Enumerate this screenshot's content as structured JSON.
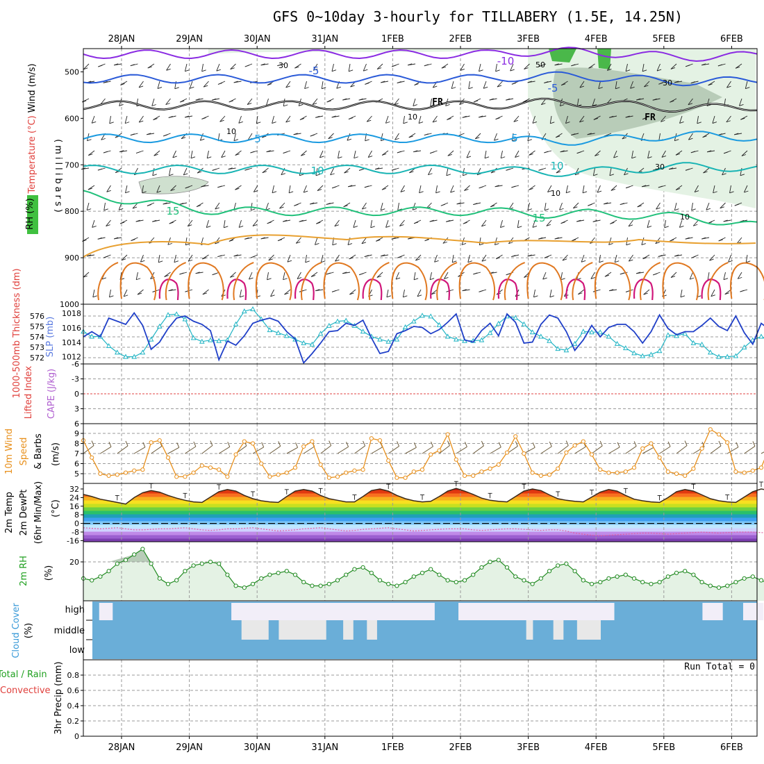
{
  "chart_data": {
    "type": "line",
    "title": "GFS 0~10day 3-hourly for TILLABERY (1.5E, 14.25N)",
    "dates": [
      "28JAN",
      "29JAN",
      "30JAN",
      "31JAN",
      "1FEB",
      "2FEB",
      "3FEB",
      "4FEB",
      "5FEB",
      "6FEB"
    ],
    "panels": [
      {
        "id": "upper_air",
        "ylabel_parts": [
          {
            "text": "Wind (m/s)",
            "color": "#000000"
          },
          {
            "text": "Temperature (°C)",
            "color": "#e0403c"
          },
          {
            "text": "RH (%)",
            "color": "#000000"
          }
        ],
        "ylabel2": "(millibars)",
        "yticks": [
          "500",
          "600",
          "700",
          "800",
          "900",
          "1000"
        ],
        "ylim": [
          1000,
          450
        ],
        "contour_labels": [
          "-10",
          "-5",
          "FR",
          "FR",
          "-5",
          "5",
          "5",
          "10",
          "10",
          "15",
          "15"
        ],
        "rh_labels": [
          "30",
          "50",
          "30",
          "10",
          "10",
          "30",
          "10",
          "10"
        ],
        "contours": [
          {
            "name": "-10",
            "color": "#8a2be2",
            "level": 462
          },
          {
            "name": "-5",
            "color": "#2a5ad8",
            "level": 515
          },
          {
            "name": "FR",
            "color": "#000000",
            "level": 572
          },
          {
            "name": "5",
            "color": "#1a9ae0",
            "level": 643
          },
          {
            "name": "10",
            "color": "#18b4b4",
            "level": 710
          },
          {
            "name": "15",
            "color": "#20c07a",
            "level": 800
          }
        ]
      },
      {
        "id": "thickness_slp",
        "ylabel_left": "1000-500mb Thickness (dm)",
        "ylabel_right": "SLP (mb)",
        "yticks_left": [
          "576",
          "575",
          "574",
          "573",
          "572"
        ],
        "yticks_right": [
          "1018",
          "1016",
          "1014",
          "1012"
        ],
        "series": [
          {
            "name": "thickness",
            "color": "#1f3fc8",
            "values": [
              574,
              574.5,
              574,
              575.8,
              575.5,
              575.2,
              576.3,
              575.1,
              572.8,
              573.5,
              574.8,
              575.8,
              576,
              575.5,
              575.2,
              574.6,
              571.8,
              573.6,
              573.2,
              574.1,
              575.3,
              575.6,
              575.8,
              575.5,
              574.5,
              573.8,
              571.5,
              572.4,
              573.4,
              574.5,
              574.6,
              575.3,
              575.1,
              575.6,
              573.9,
              572.4,
              572.6,
              574.3,
              574.6,
              575,
              574.9,
              574.3,
              574.7,
              575.4,
              576.2,
              573.7,
              573.5,
              574.6,
              575.3,
              574.1,
              576.2,
              575.4,
              573.4,
              573.5,
              575.2,
              576.1,
              575.8,
              574.5,
              572.7,
              573.7,
              575.1,
              574,
              574.9,
              575.2,
              575.2,
              574.5,
              573.4,
              574.5,
              576.1,
              574.8,
              574.2,
              574.5,
              574.5,
              575.1,
              575.8,
              575,
              574.6,
              576,
              574.4,
              573.3,
              575.3,
              574.7,
              573.9,
              575
            ]
          },
          {
            "name": "slp",
            "color": "#20b4c4",
            "values": [
              1015.5,
              1014.8,
              1014.8,
              1013.5,
              1012.6,
              1012,
              1012,
              1012.6,
              1014.4,
              1016.2,
              1017.8,
              1017.9,
              1017.2,
              1014.6,
              1014.1,
              1014.3,
              1014.2,
              1014.3,
              1016.5,
              1018.3,
              1018.6,
              1017.2,
              1015.7,
              1015.3,
              1014.9,
              1014.4,
              1013.9,
              1013.7,
              1015.2,
              1016.3,
              1016.9,
              1017,
              1016.3,
              1015.5,
              1014.8,
              1014.4,
              1014.1,
              1014.4,
              1016.1,
              1016.9,
              1017.7,
              1017.6,
              1016.4,
              1014.8,
              1014.4,
              1014.2,
              1014.2,
              1014.3,
              1015.3,
              1016.6,
              1017.6,
              1017.4,
              1016.5,
              1015.4,
              1014.8,
              1014.2,
              1013.1,
              1012.9,
              1013.8,
              1015.5,
              1015.4,
              1015.4,
              1014.8,
              1013.8,
              1013.2,
              1012.5,
              1012.1,
              1012.3,
              1012.8,
              1015,
              1014.9,
              1015.2,
              1013.9,
              1013.7,
              1012.6,
              1012,
              1012,
              1012.1,
              1013.3,
              1014.3,
              1014.8,
              1014.3,
              1013.8,
              1013.9
            ]
          }
        ]
      },
      {
        "id": "cape_li",
        "ylabel_parts": [
          {
            "text": "CAPE (J/kg)",
            "color": "#b060d0"
          },
          {
            "text": "Lifted Index",
            "color": "#e0403c"
          }
        ],
        "yticks": [
          "-6",
          "-3",
          "0",
          "3",
          "6"
        ],
        "ylim": [
          6,
          -6
        ],
        "zero_line": 0
      },
      {
        "id": "wind10m",
        "ylabel_parts": [
          {
            "text": "10m Wind",
            "color": "#e8901c"
          },
          {
            "text": "Speed",
            "color": "#e8901c"
          },
          {
            "text": "& Barbs",
            "color": "#000000"
          }
        ],
        "ylabel2": "(m/s)",
        "yticks": [
          "9",
          "8",
          "7",
          "6",
          "5"
        ],
        "ylim": [
          4.2,
          9.8
        ],
        "series": [
          {
            "name": "speed",
            "color": "#e8901c",
            "values": [
              8.3,
              6.6,
              5,
              4.8,
              4.9,
              5.1,
              5.3,
              5.4,
              8.1,
              8.3,
              6.6,
              4.7,
              4.7,
              5.1,
              5.8,
              5.6,
              5.4,
              4.7,
              6.9,
              8.2,
              8,
              6,
              4.7,
              4.9,
              5.1,
              5.6,
              7.7,
              8.2,
              5.9,
              4.6,
              4.7,
              5.1,
              5.3,
              5.4,
              8.5,
              8.3,
              6.3,
              4.6,
              4.6,
              5.2,
              5.4,
              6.9,
              7.3,
              8.9,
              6.4,
              4.8,
              4.8,
              5.2,
              5.5,
              5.9,
              7.1,
              8.7,
              7,
              5.1,
              4.8,
              4.9,
              5.5,
              7.1,
              7.8,
              8.2,
              6.9,
              5.4,
              5.1,
              5.1,
              5.2,
              5.6,
              7.5,
              8,
              6.6,
              5.2,
              5,
              4.8,
              5.5,
              7.5,
              9.4,
              8.9,
              8.1,
              5.2,
              5.1,
              5.3,
              5.6,
              7.7,
              9.3,
              8.8
            ]
          }
        ]
      },
      {
        "id": "t2m",
        "ylabel_parts": [
          {
            "text": "2m Temp",
            "color": "#000000"
          },
          {
            "text": "2m DewPt",
            "color": "#000000"
          },
          {
            "text": "(6hr Min/Max)",
            "color": "#000000"
          }
        ],
        "ylabel2": "(°C)",
        "yticks": [
          "32",
          "24",
          "16",
          "8",
          "0",
          "-8",
          "-16"
        ],
        "ylim": [
          -18,
          36
        ],
        "color_bands": [
          "#7b3fb0",
          "#9b5fd0",
          "#c08ae8",
          "#cfd2ff",
          "#bfe8ff",
          "#7fc8f8",
          "#3f9ff0",
          "#1fa0b8",
          "#2ac06a",
          "#6ed040",
          "#c8e020",
          "#f8e020",
          "#f8b020",
          "#f87020",
          "#e03810",
          "#c01010"
        ],
        "series": [
          {
            "name": "temp",
            "color": "#000000",
            "values": [
              27,
              25,
              22.5,
              21,
              19.5,
              18,
              24,
              28.5,
              30.5,
              29,
              26,
              23.5,
              21.5,
              20,
              19.5,
              24.5,
              29.5,
              31.5,
              30,
              26,
              23,
              21,
              20,
              19.5,
              25,
              30,
              31.5,
              30,
              26,
              23,
              21.5,
              20,
              20,
              25,
              30.5,
              32,
              30,
              26,
              23,
              21,
              20,
              20.5,
              25,
              30,
              32.5,
              30,
              27,
              23.5,
              21.5,
              20.5,
              20,
              25,
              30,
              32,
              30.5,
              26.5,
              23,
              21.5,
              20.5,
              20,
              24.5,
              29,
              31.5,
              30,
              26,
              22.5,
              21,
              20,
              19.5,
              24,
              29.5,
              31.5,
              30,
              26.5,
              23,
              21,
              20,
              19.5,
              24.5,
              29.5,
              32,
              30.5,
              26,
              22.5
            ]
          },
          {
            "name": "dewpt",
            "color": "#e060a0",
            "values": [
              -4,
              -4.5,
              -5,
              -4.5,
              -4,
              -5,
              -6,
              -6,
              -5.5,
              -5,
              -5,
              -4.5,
              -4,
              -5,
              -6,
              -6.5,
              -6,
              -5,
              -5,
              -4.5,
              -4,
              -5,
              -6,
              -7,
              -6.5,
              -6,
              -5,
              -4.5,
              -4,
              -5,
              -6,
              -7,
              -6.5,
              -5.5,
              -5,
              -4.5,
              -4,
              -5,
              -6,
              -7,
              -6.5,
              -6,
              -5.5,
              -5,
              -5,
              -5,
              -6,
              -6.5,
              -6,
              -5.5,
              -5,
              -5,
              -5.5,
              -6,
              -6.5,
              -6,
              -6,
              -7,
              -9,
              -10,
              -11,
              -11.5,
              -11,
              -10.5,
              -10,
              -9.5,
              -9,
              -9,
              -9.5,
              -10,
              -9.5,
              -9,
              -8.5,
              -8,
              -8.5,
              -9,
              -8.5,
              -8,
              -8,
              -8,
              -8.5,
              -9,
              -8.5,
              -8
            ]
          }
        ]
      },
      {
        "id": "rh2m",
        "ylabel_parts": [
          {
            "text": "2m RH",
            "color": "#20a020"
          }
        ],
        "ylabel2": "(%)",
        "yticks": [
          "20"
        ],
        "ylim": [
          0,
          33
        ],
        "series": [
          {
            "name": "rh",
            "color": "#208a20",
            "values": [
              11,
              10,
              12,
              15,
              19,
              21,
              24,
              27,
              19,
              11,
              8,
              10,
              15,
              18,
              19,
              20,
              19,
              13,
              7,
              6,
              8,
              11,
              13,
              14,
              15,
              13,
              9,
              7,
              7,
              8,
              10,
              13,
              16,
              17,
              14,
              10,
              8,
              7,
              9,
              12,
              14,
              16,
              13,
              10,
              9,
              10,
              13,
              17,
              20,
              21,
              17,
              12,
              10,
              8,
              11,
              15,
              18,
              19,
              15,
              10,
              8,
              9,
              11,
              12,
              13,
              11,
              9,
              8,
              9,
              12,
              14,
              15,
              13,
              9,
              7,
              6,
              7,
              9,
              11,
              12,
              10,
              8,
              11,
              12
            ]
          }
        ]
      },
      {
        "id": "cloud",
        "ylabel": "Cloud Cover",
        "ylabel2": "(%)",
        "layers": [
          "high",
          "middle",
          "low"
        ],
        "high_clear_ranges": [
          [
            0.1,
            0.3
          ],
          [
            2.05,
            5.05
          ],
          [
            5.4,
            7.7
          ],
          [
            9.0,
            9.3
          ],
          [
            9.6,
            9.9
          ]
        ],
        "mid_clear_ranges": [
          [
            2.2,
            2.6
          ],
          [
            2.75,
            3.45
          ],
          [
            3.7,
            3.85
          ],
          [
            4.05,
            4.2
          ],
          [
            6.4,
            6.5
          ],
          [
            6.8,
            6.95
          ],
          [
            7.15,
            7.5
          ]
        ],
        "low_clear_ranges": []
      },
      {
        "id": "precip",
        "ylabel_parts": [
          {
            "text": "Total / Rain",
            "color": "#20a020"
          },
          {
            "text": "Convective",
            "color": "#e0403c"
          }
        ],
        "ylabel2": "3hr Precip (mm)",
        "yticks": [
          "0",
          "0.2",
          "0.4",
          "0.6",
          "0.8"
        ],
        "ylim": [
          0,
          1
        ],
        "run_total": "Run Total = 0"
      }
    ]
  }
}
